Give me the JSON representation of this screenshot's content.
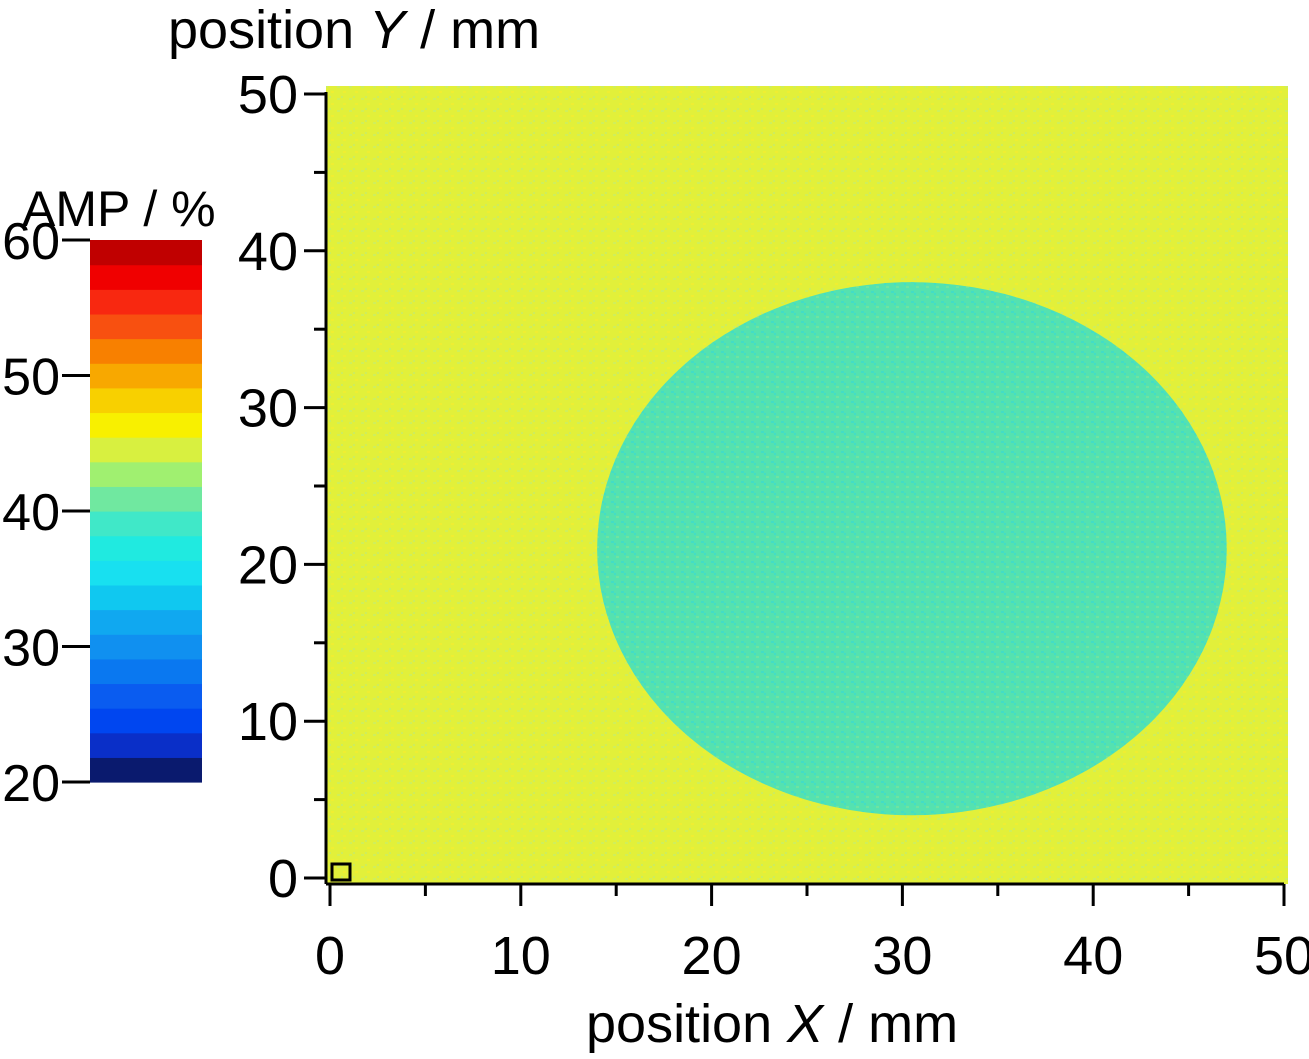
{
  "chart_data": {
    "type": "heatmap",
    "title": "",
    "ylabel_prefix": "position ",
    "ylabel_symbol": "Y",
    "ylabel_suffix": " / mm",
    "xlabel_prefix": "position ",
    "xlabel_symbol": "X",
    "xlabel_suffix": " / mm",
    "xlim": [
      0,
      50
    ],
    "ylim": [
      0,
      50
    ],
    "x_ticks": [
      "0",
      "10",
      "20",
      "30",
      "40",
      "50"
    ],
    "y_ticks": [
      "0",
      "10",
      "20",
      "30",
      "40",
      "50"
    ],
    "colorbar": {
      "label": "AMP / %",
      "range": [
        20,
        60
      ],
      "ticks": [
        "20",
        "30",
        "40",
        "50",
        "60"
      ],
      "colors": [
        "#0a1a6e",
        "#0a2fc8",
        "#0046f0",
        "#0a5cf0",
        "#0a78f0",
        "#1090f0",
        "#10a8f0",
        "#10c8f0",
        "#18e0f0",
        "#20eae0",
        "#40e8c8",
        "#70e8a0",
        "#a0f070",
        "#d8f040",
        "#f8f000",
        "#f8d000",
        "#f8a800",
        "#f88000",
        "#f85010",
        "#f82810",
        "#f00000",
        "#c00000"
      ]
    },
    "background_level": 43,
    "background_color": "#e2f03a",
    "region": {
      "shape": "ellipse",
      "center_x": 30.5,
      "center_y": 21,
      "radius_x": 16.5,
      "radius_y": 17,
      "level": 38,
      "color": "#52e2b2"
    }
  }
}
